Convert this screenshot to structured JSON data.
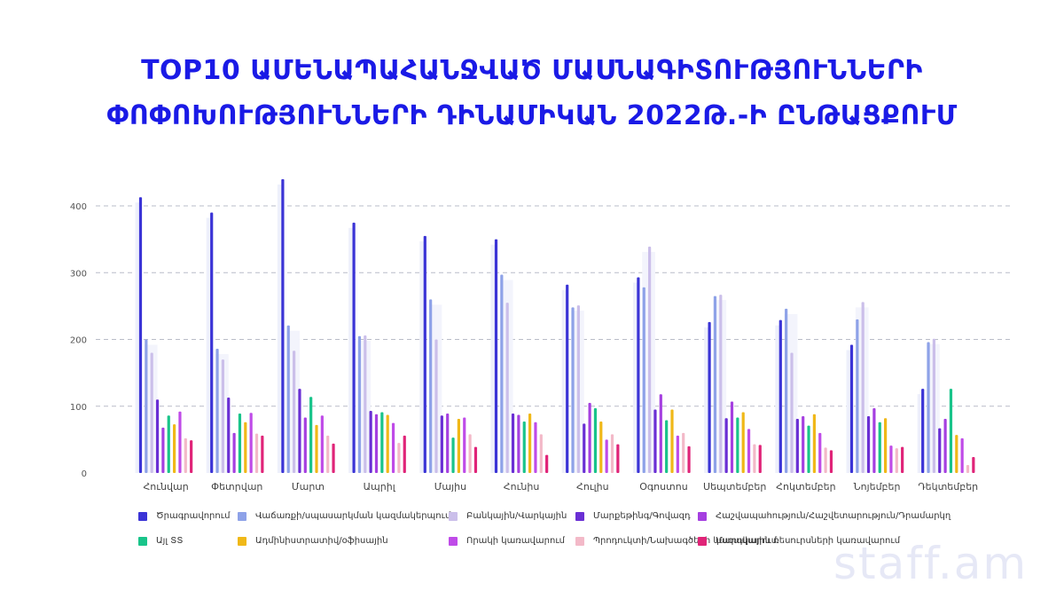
{
  "header": {
    "title_line1": "TOP10 ԱՄԵՆԱՊԱՀԱՆՋՎԱԾ ՄԱՍՆԱԳԻՏՈՒԹՅՈՒՆՆԵՐԻ",
    "title_line2": "ՓՈՓՈԽՈՒԹՅՈՒՆՆԵՐԻ ԴԻՆԱՄԻԿԱՆ 2022Թ.-Ի ԸՆԹԱՑՔՈՒՄ"
  },
  "brand": {
    "watermark": "staff.am"
  },
  "chart_data": {
    "type": "bar",
    "title": "TOP10 ԱՄԵՆԱՊԱՀԱՆՋՎԱԾ ՄԱՍՆԱԳԻՏՈՒԹՅՈՒՆՆԵՐԻ ՓՈՓՈԽՈՒԹՅՈՒՆՆԵՐԻ ԴԻՆԱՄԻԿԱՆ 2022Թ.-Ի ԸՆԹԱՑՔՈՒՄ",
    "xlabel": "",
    "ylabel": "",
    "ylim": [
      0,
      450
    ],
    "yticks": [
      0,
      100,
      200,
      300,
      400
    ],
    "grid": true,
    "legend_position": "bottom",
    "categories": [
      "Հունվար",
      "Փետրվար",
      "Մարտ",
      "Ապրիլ",
      "Մայիս",
      "Հունիս",
      "Հուլիս",
      "Օգոստոս",
      "Սեպտեմբեր",
      "Հոկտեմբեր",
      "Նոյեմբեր",
      "Դեկտեմբեր"
    ],
    "series": [
      {
        "name": "Ծրագրավորում",
        "color": "#3b34d6",
        "values": [
          413,
          390,
          440,
          375,
          355,
          350,
          282,
          293,
          226,
          229,
          192,
          126
        ]
      },
      {
        "name": "Վաճառքի/սպասարկման կազմակերպում",
        "color": "#8ea2e8",
        "values": [
          200,
          186,
          221,
          205,
          260,
          297,
          248,
          278,
          265,
          246,
          230,
          196
        ]
      },
      {
        "name": "Բանկային/Վարկային",
        "color": "#cbbfea",
        "values": [
          180,
          170,
          183,
          206,
          200,
          255,
          251,
          339,
          267,
          180,
          256,
          201
        ]
      },
      {
        "name": "Մարքեթինգ/Գովազդ",
        "color": "#6a2fd4",
        "values": [
          110,
          113,
          126,
          93,
          86,
          89,
          74,
          95,
          82,
          81,
          85,
          67
        ]
      },
      {
        "name": "Հաշվապահություն/Հաշվետարություն/Դրամարկղ",
        "color": "#a53fe0",
        "values": [
          68,
          60,
          83,
          88,
          89,
          87,
          105,
          118,
          107,
          85,
          97,
          81
        ]
      },
      {
        "name": "Այլ ՏՏ",
        "color": "#19c48a",
        "values": [
          86,
          89,
          114,
          91,
          53,
          77,
          97,
          79,
          83,
          71,
          76,
          126
        ]
      },
      {
        "name": "Ադմինիստրատիվ/օֆիսային",
        "color": "#f0b818",
        "values": [
          73,
          76,
          72,
          87,
          81,
          89,
          77,
          95,
          91,
          88,
          82,
          57
        ]
      },
      {
        "name": "Որակի կառավարում",
        "color": "#bf4be8",
        "values": [
          92,
          90,
          86,
          75,
          83,
          76,
          50,
          56,
          66,
          60,
          41,
          52
        ]
      },
      {
        "name": "Պրոդուկտի/Նախագծերի կառավարում",
        "color": "#f3b9c8",
        "values": [
          52,
          59,
          56,
          45,
          58,
          58,
          58,
          60,
          43,
          38,
          37,
          12
        ]
      },
      {
        "name": "Մարդկային ռեսուրսների կառավարում",
        "color": "#e02478",
        "values": [
          49,
          56,
          44,
          56,
          39,
          27,
          43,
          40,
          42,
          34,
          39,
          24
        ]
      }
    ]
  }
}
